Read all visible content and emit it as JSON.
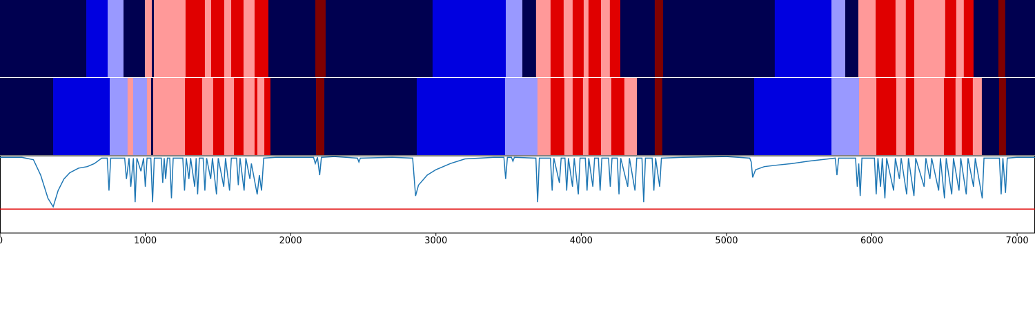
{
  "chart_data": [
    {
      "type": "segments",
      "palette": [
        "#000050",
        "#0000e0",
        "#9999ff",
        "#ff9999",
        "#e00000",
        "#800000"
      ],
      "xlim": [
        0,
        7123
      ],
      "rows": [
        {
          "edges": [
            0,
            594,
            741,
            850,
            997,
            1045,
            1059,
            1277,
            1410,
            1453,
            1543,
            1591,
            1676,
            1752,
            1847,
            2170,
            2241,
            2977,
            3481,
            3595,
            3689,
            3789,
            3879,
            3941,
            4017,
            4050,
            4136,
            4197,
            4269,
            4506,
            4563,
            5332,
            5722,
            5817,
            5907,
            6026,
            6163,
            6234,
            6292,
            6505,
            6581,
            6633,
            6700,
            6871,
            6918,
            7123
          ],
          "classes": [
            0,
            1,
            2,
            0,
            3,
            0,
            3,
            4,
            3,
            4,
            3,
            4,
            3,
            4,
            0,
            5,
            0,
            1,
            2,
            0,
            3,
            4,
            3,
            4,
            3,
            4,
            3,
            4,
            0,
            5,
            0,
            1,
            2,
            0,
            3,
            4,
            3,
            4,
            3,
            4,
            3,
            4,
            0,
            5,
            0
          ]
        },
        {
          "edges": [
            0,
            366,
            755,
            878,
            916,
            1011,
            1040,
            1054,
            1273,
            1391,
            1467,
            1543,
            1610,
            1676,
            1752,
            1771,
            1819,
            1861,
            2175,
            2232,
            2868,
            3476,
            3699,
            3789,
            3884,
            3941,
            4012,
            4050,
            4136,
            4207,
            4297,
            4383,
            4506,
            4558,
            5190,
            5722,
            5912,
            6031,
            6168,
            6234,
            6292,
            6496,
            6576,
            6619,
            6695,
            6757,
            6876,
            6923,
            7123
          ],
          "classes": [
            0,
            1,
            2,
            3,
            2,
            3,
            0,
            3,
            4,
            3,
            4,
            3,
            4,
            3,
            4,
            3,
            4,
            0,
            5,
            0,
            1,
            2,
            3,
            4,
            3,
            4,
            3,
            4,
            3,
            4,
            3,
            0,
            5,
            0,
            1,
            2,
            3,
            4,
            3,
            4,
            3,
            4,
            3,
            4,
            3,
            0,
            5,
            0
          ]
        }
      ]
    },
    {
      "type": "line",
      "xlim": [
        0,
        7123
      ],
      "ylim": [
        0,
        1
      ],
      "xticks": [
        0,
        1000,
        2000,
        3000,
        4000,
        5000,
        6000,
        7000
      ],
      "threshold": 0.31,
      "threshold_color": "#e00000",
      "series": [
        {
          "color": "#1f77b4",
          "x": [
            0,
            150,
            230,
            280,
            330,
            366,
            400,
            440,
            480,
            540,
            600,
            650,
            700,
            738,
            750,
            762,
            858,
            870,
            888,
            900,
            918,
            930,
            942,
            970,
            988,
            1000,
            1012,
            1038,
            1050,
            1062,
            1110,
            1120,
            1130,
            1140,
            1152,
            1168,
            1180,
            1192,
            1258,
            1270,
            1282,
            1300,
            1312,
            1340,
            1350,
            1360,
            1372,
            1398,
            1410,
            1422,
            1450,
            1462,
            1490,
            1502,
            1540,
            1552,
            1580,
            1592,
            1628,
            1640,
            1652,
            1680,
            1692,
            1720,
            1730,
            1770,
            1785,
            1800,
            1815,
            1900,
            2000,
            2158,
            2170,
            2185,
            2200,
            2212,
            2300,
            2460,
            2470,
            2480,
            2700,
            2840,
            2860,
            2880,
            2940,
            3000,
            3050,
            3100,
            3200,
            3300,
            3400,
            3468,
            3480,
            3492,
            3520,
            3530,
            3540,
            3688,
            3700,
            3712,
            3788,
            3800,
            3812,
            3850,
            3862,
            3888,
            3900,
            3912,
            3940,
            3952,
            3980,
            3992,
            4028,
            4040,
            4052,
            4080,
            4092,
            4118,
            4130,
            4142,
            4188,
            4200,
            4212,
            4248,
            4260,
            4272,
            4320,
            4332,
            4370,
            4382,
            4418,
            4430,
            4442,
            4488,
            4500,
            4512,
            4540,
            4552,
            4700,
            5000,
            5160,
            5170,
            5180,
            5200,
            5260,
            5350,
            5450,
            5560,
            5700,
            5748,
            5760,
            5772,
            5888,
            5900,
            5910,
            5920,
            5932,
            6018,
            6030,
            6042,
            6060,
            6072,
            6090,
            6102,
            6150,
            6162,
            6190,
            6202,
            6240,
            6252,
            6290,
            6302,
            6360,
            6372,
            6400,
            6412,
            6460,
            6472,
            6500,
            6512,
            6550,
            6562,
            6600,
            6612,
            6650,
            6662,
            6700,
            6712,
            6760,
            6772,
            6878,
            6890,
            6902,
            6920,
            6932,
            7000,
            7123
          ],
          "values": [
            0.98,
            0.98,
            0.95,
            0.75,
            0.45,
            0.34,
            0.55,
            0.7,
            0.78,
            0.84,
            0.86,
            0.9,
            0.97,
            0.97,
            0.55,
            0.97,
            0.97,
            0.7,
            0.97,
            0.6,
            0.97,
            0.4,
            0.97,
            0.8,
            0.97,
            0.6,
            0.97,
            0.97,
            0.4,
            0.97,
            0.97,
            0.65,
            0.97,
            0.7,
            0.97,
            0.97,
            0.45,
            0.97,
            0.97,
            0.55,
            0.97,
            0.7,
            0.97,
            0.6,
            0.97,
            0.5,
            0.97,
            0.97,
            0.55,
            0.97,
            0.7,
            0.97,
            0.5,
            0.97,
            0.6,
            0.97,
            0.55,
            0.97,
            0.97,
            0.62,
            0.97,
            0.55,
            0.97,
            0.7,
            0.9,
            0.5,
            0.75,
            0.55,
            0.97,
            0.98,
            0.98,
            0.98,
            0.9,
            0.98,
            0.75,
            0.98,
            0.99,
            0.97,
            0.92,
            0.97,
            0.98,
            0.97,
            0.48,
            0.62,
            0.75,
            0.82,
            0.86,
            0.9,
            0.96,
            0.97,
            0.98,
            0.98,
            0.7,
            0.98,
            0.98,
            0.93,
            0.98,
            0.97,
            0.4,
            0.97,
            0.97,
            0.55,
            0.97,
            0.65,
            0.97,
            0.97,
            0.55,
            0.97,
            0.6,
            0.97,
            0.5,
            0.97,
            0.97,
            0.55,
            0.97,
            0.6,
            0.97,
            0.97,
            0.55,
            0.97,
            0.97,
            0.6,
            0.97,
            0.97,
            0.5,
            0.97,
            0.6,
            0.97,
            0.55,
            0.97,
            0.97,
            0.4,
            0.97,
            0.97,
            0.55,
            0.97,
            0.6,
            0.97,
            0.98,
            0.99,
            0.97,
            0.92,
            0.72,
            0.82,
            0.86,
            0.88,
            0.9,
            0.93,
            0.96,
            0.97,
            0.75,
            0.97,
            0.97,
            0.6,
            0.9,
            0.48,
            0.97,
            0.97,
            0.5,
            0.97,
            0.6,
            0.97,
            0.45,
            0.97,
            0.55,
            0.97,
            0.7,
            0.97,
            0.5,
            0.97,
            0.48,
            0.97,
            0.6,
            0.97,
            0.7,
            0.97,
            0.55,
            0.97,
            0.45,
            0.97,
            0.5,
            0.97,
            0.55,
            0.97,
            0.5,
            0.97,
            0.6,
            0.97,
            0.45,
            0.97,
            0.97,
            0.5,
            0.97,
            0.52,
            0.97,
            0.98,
            0.98
          ]
        }
      ]
    }
  ]
}
